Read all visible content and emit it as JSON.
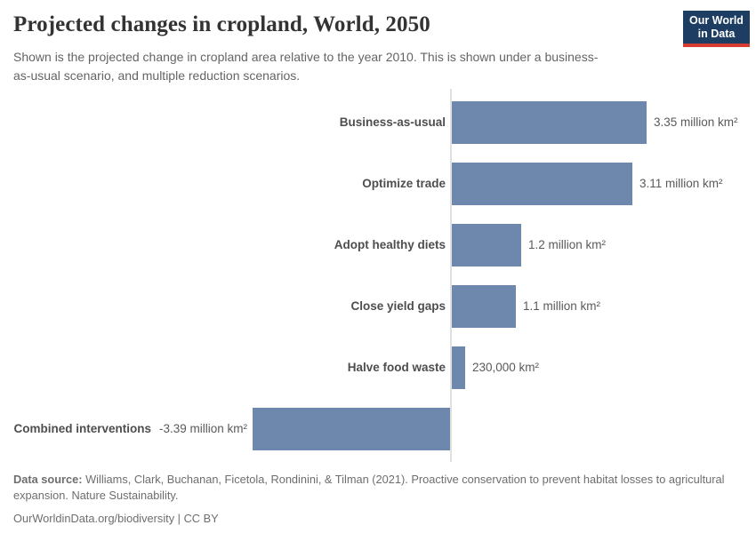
{
  "header": {
    "title": "Projected changes in cropland, World, 2050",
    "subtitle": "Shown is the projected change in cropland area relative to the year 2010. This is shown under a business-as-usual scenario, and multiple reduction scenarios.",
    "logo": {
      "line1": "Our World",
      "line2": "in Data",
      "bg_color": "#1d3d63",
      "stripe_color": "#d73c32"
    }
  },
  "chart_data": {
    "type": "bar",
    "orientation": "horizontal",
    "title": "Projected changes in cropland, World, 2050",
    "unit": "million km²",
    "categories": [
      "Business-as-usual",
      "Optimize trade",
      "Adopt healthy diets",
      "Close yield gaps",
      "Halve food waste",
      "Combined interventions"
    ],
    "values": [
      3.35,
      3.11,
      1.2,
      1.1,
      0.23,
      -3.39
    ],
    "value_labels": [
      "3.35 million km²",
      "3.11 million km²",
      "1.2 million km²",
      "1.1 million km²",
      "230,000 km²",
      "-3.39 million km²"
    ],
    "bar_color": "#6e87ad",
    "axis_color": "#e0e0e0",
    "xlim": [
      -3.5,
      3.5
    ],
    "grid": false,
    "legend": "none"
  },
  "footer": {
    "data_source_label": "Data source:",
    "data_source_text": " Williams, Clark, Buchanan, Ficetola, Rondinini, & Tilman (2021). Proactive conservation to prevent habitat losses to agricultural expansion. Nature Sustainability.",
    "link_text": "OurWorldinData.org/biodiversity",
    "separator": " | ",
    "license": "CC BY"
  }
}
